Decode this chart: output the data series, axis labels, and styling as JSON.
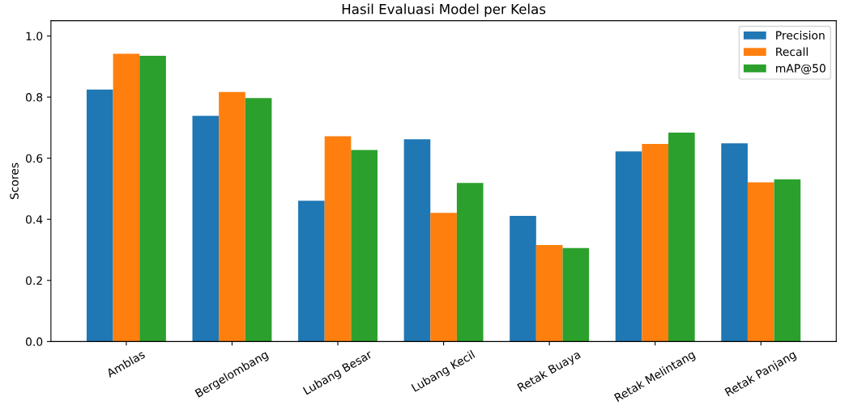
{
  "chart_data": {
    "type": "bar",
    "title": "Hasil Evaluasi Model per Kelas",
    "ylabel": "Scores",
    "categories": [
      "Amblas",
      "Bergelombang",
      "Lubang Besar",
      "Lubang Kecil",
      "Retak Buaya",
      "Retak Melintang",
      "Retak Panjang"
    ],
    "series": [
      {
        "name": "Precision",
        "color": "#1f77b4",
        "values": [
          0.825,
          0.739,
          0.461,
          0.662,
          0.411,
          0.622,
          0.649
        ]
      },
      {
        "name": "Recall",
        "color": "#ff7f0e",
        "values": [
          0.942,
          0.817,
          0.672,
          0.421,
          0.316,
          0.647,
          0.521
        ]
      },
      {
        "name": "mAP@50",
        "color": "#2ca02c",
        "values": [
          0.935,
          0.797,
          0.627,
          0.519,
          0.306,
          0.684,
          0.531
        ]
      }
    ],
    "ylim": [
      0,
      1.05
    ],
    "yticks": [
      {
        "value": 0,
        "label": "0.0"
      },
      {
        "value": 0.2,
        "label": "0.2"
      },
      {
        "value": 0.4,
        "label": "0.4"
      },
      {
        "value": 0.6,
        "label": "0.6"
      },
      {
        "value": 0.8,
        "label": "0.8"
      },
      {
        "value": 1.0,
        "label": "1.0"
      }
    ],
    "legend": "top right",
    "grid": false
  }
}
